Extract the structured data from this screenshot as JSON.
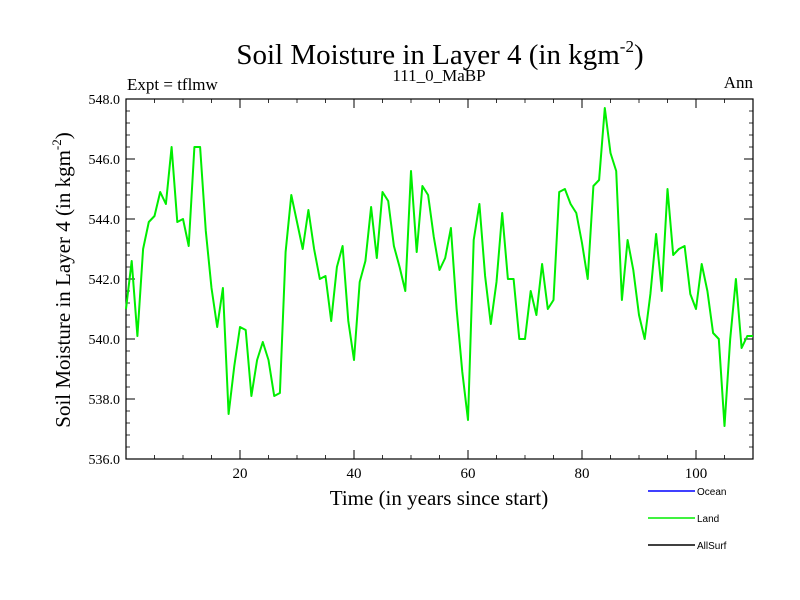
{
  "chart_data": {
    "type": "line",
    "title_main": "Soil Moisture in Layer 4 (in kgm",
    "title_sup": "-2",
    "title_end": ")",
    "subtitle_left": "Expt = tflmw",
    "subtitle_center": "111_0_MaBP",
    "subtitle_right": "Ann",
    "xlabel": "Time (in years since start)",
    "ylabel_main": "Soil Moisture in Layer 4 (in kgm",
    "ylabel_sup": "-2",
    "ylabel_end": ")",
    "xlim": [
      0,
      110
    ],
    "ylim": [
      536.0,
      548.0
    ],
    "xticks": [
      20,
      40,
      60,
      80,
      100
    ],
    "xtick_labels": [
      "20",
      "40",
      "60",
      "80",
      "100"
    ],
    "yticks": [
      536.0,
      538.0,
      540.0,
      542.0,
      544.0,
      546.0,
      548.0
    ],
    "ytick_labels": [
      "536.0",
      "538.0",
      "540.0",
      "542.0",
      "544.0",
      "546.0",
      "548.0"
    ],
    "legend": [
      {
        "name": "Ocean",
        "color": "#0000ff"
      },
      {
        "name": "Land",
        "color": "#00ee00"
      },
      {
        "name": "AllSurf",
        "color": "#000000"
      }
    ],
    "series": [
      {
        "name": "Land",
        "color": "#00ee00",
        "x": [
          0,
          1,
          2,
          3,
          4,
          5,
          6,
          7,
          8,
          9,
          10,
          11,
          12,
          13,
          14,
          15,
          16,
          17,
          18,
          19,
          20,
          21,
          22,
          23,
          24,
          25,
          26,
          27,
          28,
          29,
          30,
          31,
          32,
          33,
          34,
          35,
          36,
          37,
          38,
          39,
          40,
          41,
          42,
          43,
          44,
          45,
          46,
          47,
          48,
          49,
          50,
          51,
          52,
          53,
          54,
          55,
          56,
          57,
          58,
          59,
          60,
          61,
          62,
          63,
          64,
          65,
          66,
          67,
          68,
          69,
          70,
          71,
          72,
          73,
          74,
          75,
          76,
          77,
          78,
          79,
          80,
          81,
          82,
          83,
          84,
          85,
          86,
          87,
          88,
          89,
          90,
          91,
          92,
          93,
          94,
          95,
          96,
          97,
          98,
          99,
          100,
          101,
          102,
          103,
          104,
          105,
          106,
          107,
          108,
          109,
          110
        ],
        "values": [
          541.0,
          542.6,
          540.1,
          543.0,
          543.9,
          544.1,
          544.9,
          544.5,
          546.4,
          543.9,
          544.0,
          543.1,
          546.4,
          546.4,
          543.6,
          541.7,
          540.4,
          541.7,
          537.5,
          539.1,
          540.4,
          540.3,
          538.1,
          539.3,
          539.9,
          539.3,
          538.1,
          538.2,
          542.9,
          544.8,
          543.9,
          543.0,
          544.3,
          543.0,
          542.0,
          542.1,
          540.6,
          542.4,
          543.1,
          540.6,
          539.3,
          541.9,
          542.6,
          544.4,
          542.7,
          544.9,
          544.6,
          543.1,
          542.4,
          541.6,
          545.6,
          542.9,
          545.1,
          544.8,
          543.4,
          542.3,
          542.7,
          543.7,
          541.0,
          538.9,
          537.3,
          543.3,
          544.5,
          542.1,
          540.5,
          541.9,
          544.2,
          542.0,
          542.0,
          540.0,
          540.0,
          541.6,
          540.8,
          542.5,
          541.0,
          541.3,
          544.9,
          545.0,
          544.5,
          544.2,
          543.2,
          542.0,
          545.1,
          545.3,
          547.7,
          546.2,
          545.6,
          541.3,
          543.3,
          542.3,
          540.8,
          540.0,
          541.5,
          543.5,
          541.6,
          545.0,
          542.8,
          543.0,
          543.1,
          541.5,
          541.0,
          542.5,
          541.6,
          540.2,
          540.0,
          537.1,
          540.0,
          542.0,
          539.7,
          540.1,
          540.1
        ]
      }
    ]
  }
}
